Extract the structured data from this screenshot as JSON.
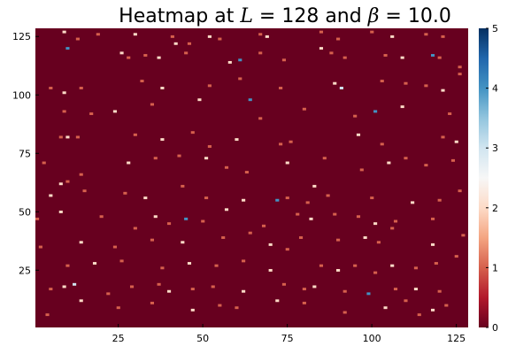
{
  "chart_data": {
    "type": "heatmap",
    "title_parts": [
      {
        "text": "Heatmap at ",
        "style": "normal"
      },
      {
        "text": "L",
        "style": "italic"
      },
      {
        "text": " = 128 and ",
        "style": "normal"
      },
      {
        "text": "β",
        "style": "italic"
      },
      {
        "text": " = 10.0",
        "style": "normal"
      }
    ],
    "xlim": [
      1,
      128
    ],
    "ylim": [
      1,
      128
    ],
    "x_ticks": [
      25,
      50,
      75,
      100,
      125
    ],
    "y_ticks": [
      25,
      50,
      75,
      100,
      125
    ],
    "colorbar": {
      "range": [
        0,
        5
      ],
      "ticks": [
        0,
        1,
        2,
        3,
        4,
        5
      ],
      "colormap": "RdBu",
      "stops": [
        "#67001f",
        "#b2182b",
        "#d6604d",
        "#f4a582",
        "#fddbc7",
        "#f7f7f7",
        "#d1e5f0",
        "#92c5de",
        "#4393c3",
        "#2166ac",
        "#053061"
      ]
    },
    "background_value": 0,
    "cells": [
      [
        9,
        127,
        2
      ],
      [
        10,
        120,
        4
      ],
      [
        13,
        124,
        1
      ],
      [
        19,
        126,
        1
      ],
      [
        30,
        126,
        2
      ],
      [
        41,
        125,
        1
      ],
      [
        42,
        122,
        2
      ],
      [
        46,
        122,
        1
      ],
      [
        52,
        125,
        2
      ],
      [
        55,
        124,
        1
      ],
      [
        67,
        126,
        1
      ],
      [
        69,
        125,
        2
      ],
      [
        85,
        127,
        1
      ],
      [
        90,
        124,
        1
      ],
      [
        100,
        127,
        1
      ],
      [
        106,
        125,
        2
      ],
      [
        116,
        126,
        1
      ],
      [
        121,
        125,
        1
      ],
      [
        26,
        118,
        2
      ],
      [
        28,
        116,
        1
      ],
      [
        33,
        117,
        1
      ],
      [
        37,
        116,
        2
      ],
      [
        45,
        118,
        1
      ],
      [
        58,
        114,
        2
      ],
      [
        61,
        115,
        4
      ],
      [
        67,
        118,
        1
      ],
      [
        74,
        115,
        1
      ],
      [
        85,
        120,
        2
      ],
      [
        88,
        118,
        1
      ],
      [
        92,
        116,
        1
      ],
      [
        104,
        117,
        1
      ],
      [
        109,
        116,
        2
      ],
      [
        118,
        117,
        4
      ],
      [
        120,
        116,
        1
      ],
      [
        126,
        112,
        1
      ],
      [
        5,
        103,
        1
      ],
      [
        9,
        101,
        2
      ],
      [
        14,
        103,
        1
      ],
      [
        32,
        106,
        1
      ],
      [
        38,
        103,
        2
      ],
      [
        52,
        104,
        1
      ],
      [
        61,
        107,
        1
      ],
      [
        64,
        98,
        4
      ],
      [
        73,
        103,
        1
      ],
      [
        89,
        105,
        2
      ],
      [
        91,
        103,
        3
      ],
      [
        103,
        106,
        1
      ],
      [
        110,
        105,
        1
      ],
      [
        116,
        104,
        1
      ],
      [
        121,
        102,
        2
      ],
      [
        126,
        109,
        1
      ],
      [
        9,
        93,
        1
      ],
      [
        17,
        92,
        1
      ],
      [
        24,
        93,
        2
      ],
      [
        35,
        96,
        1
      ],
      [
        49,
        98,
        2
      ],
      [
        67,
        90,
        1
      ],
      [
        80,
        94,
        1
      ],
      [
        95,
        91,
        1
      ],
      [
        101,
        93,
        4
      ],
      [
        109,
        95,
        2
      ],
      [
        123,
        92,
        1
      ],
      [
        8,
        82,
        1
      ],
      [
        10,
        82,
        2
      ],
      [
        13,
        82,
        1
      ],
      [
        30,
        83,
        1
      ],
      [
        38,
        81,
        2
      ],
      [
        47,
        84,
        1
      ],
      [
        52,
        78,
        1
      ],
      [
        60,
        81,
        2
      ],
      [
        73,
        79,
        1
      ],
      [
        76,
        80,
        1
      ],
      [
        96,
        83,
        2
      ],
      [
        103,
        79,
        1
      ],
      [
        121,
        82,
        1
      ],
      [
        125,
        80,
        2
      ],
      [
        3,
        71,
        1
      ],
      [
        8,
        62,
        2
      ],
      [
        10,
        63,
        1
      ],
      [
        14,
        66,
        1
      ],
      [
        28,
        71,
        2
      ],
      [
        36,
        73,
        1
      ],
      [
        43,
        74,
        1
      ],
      [
        51,
        73,
        2
      ],
      [
        57,
        69,
        1
      ],
      [
        63,
        67,
        1
      ],
      [
        75,
        71,
        2
      ],
      [
        86,
        73,
        1
      ],
      [
        97,
        68,
        1
      ],
      [
        105,
        71,
        2
      ],
      [
        110,
        73,
        1
      ],
      [
        116,
        70,
        1
      ],
      [
        124,
        72,
        1
      ],
      [
        5,
        57,
        2
      ],
      [
        15,
        59,
        1
      ],
      [
        27,
        58,
        1
      ],
      [
        33,
        56,
        2
      ],
      [
        44,
        61,
        1
      ],
      [
        51,
        56,
        1
      ],
      [
        62,
        55,
        2
      ],
      [
        72,
        55,
        4
      ],
      [
        75,
        56,
        1
      ],
      [
        81,
        54,
        1
      ],
      [
        83,
        61,
        2
      ],
      [
        87,
        57,
        1
      ],
      [
        100,
        56,
        1
      ],
      [
        112,
        54,
        2
      ],
      [
        120,
        55,
        1
      ],
      [
        126,
        59,
        1
      ],
      [
        1,
        47,
        1
      ],
      [
        8,
        50,
        2
      ],
      [
        20,
        48,
        1
      ],
      [
        30,
        43,
        1
      ],
      [
        36,
        48,
        2
      ],
      [
        40,
        45,
        1
      ],
      [
        45,
        47,
        4
      ],
      [
        50,
        46,
        1
      ],
      [
        57,
        51,
        2
      ],
      [
        68,
        44,
        1
      ],
      [
        78,
        49,
        1
      ],
      [
        82,
        47,
        2
      ],
      [
        89,
        49,
        1
      ],
      [
        96,
        48,
        1
      ],
      [
        101,
        45,
        2
      ],
      [
        107,
        46,
        1
      ],
      [
        118,
        47,
        1
      ],
      [
        2,
        35,
        1
      ],
      [
        14,
        37,
        2
      ],
      [
        24,
        35,
        1
      ],
      [
        35,
        38,
        1
      ],
      [
        44,
        37,
        2
      ],
      [
        56,
        39,
        1
      ],
      [
        64,
        41,
        1
      ],
      [
        70,
        36,
        2
      ],
      [
        75,
        34,
        1
      ],
      [
        79,
        39,
        1
      ],
      [
        90,
        38,
        1
      ],
      [
        98,
        39,
        2
      ],
      [
        102,
        37,
        1
      ],
      [
        106,
        43,
        1
      ],
      [
        118,
        36,
        2
      ],
      [
        127,
        40,
        1
      ],
      [
        10,
        27,
        1
      ],
      [
        18,
        28,
        2
      ],
      [
        26,
        29,
        1
      ],
      [
        38,
        26,
        1
      ],
      [
        46,
        28,
        2
      ],
      [
        54,
        27,
        1
      ],
      [
        62,
        29,
        1
      ],
      [
        70,
        25,
        2
      ],
      [
        85,
        27,
        1
      ],
      [
        90,
        25,
        2
      ],
      [
        95,
        27,
        1
      ],
      [
        101,
        24,
        1
      ],
      [
        106,
        27,
        2
      ],
      [
        113,
        26,
        1
      ],
      [
        119,
        28,
        1
      ],
      [
        125,
        31,
        1
      ],
      [
        5,
        17,
        1
      ],
      [
        9,
        18,
        2
      ],
      [
        12,
        19,
        3
      ],
      [
        22,
        15,
        1
      ],
      [
        29,
        18,
        1
      ],
      [
        37,
        19,
        1
      ],
      [
        40,
        16,
        2
      ],
      [
        47,
        17,
        1
      ],
      [
        53,
        18,
        1
      ],
      [
        62,
        16,
        2
      ],
      [
        74,
        19,
        1
      ],
      [
        80,
        17,
        1
      ],
      [
        83,
        18,
        2
      ],
      [
        92,
        16,
        1
      ],
      [
        99,
        15,
        4
      ],
      [
        107,
        17,
        1
      ],
      [
        113,
        17,
        2
      ],
      [
        120,
        16,
        1
      ],
      [
        4,
        6,
        1
      ],
      [
        14,
        12,
        2
      ],
      [
        25,
        9,
        1
      ],
      [
        35,
        11,
        1
      ],
      [
        47,
        8,
        2
      ],
      [
        55,
        10,
        1
      ],
      [
        60,
        9,
        1
      ],
      [
        72,
        12,
        2
      ],
      [
        80,
        11,
        1
      ],
      [
        92,
        7,
        1
      ],
      [
        104,
        9,
        2
      ],
      [
        110,
        12,
        1
      ],
      [
        114,
        6,
        1
      ],
      [
        118,
        8,
        2
      ],
      [
        122,
        10,
        1
      ]
    ]
  }
}
